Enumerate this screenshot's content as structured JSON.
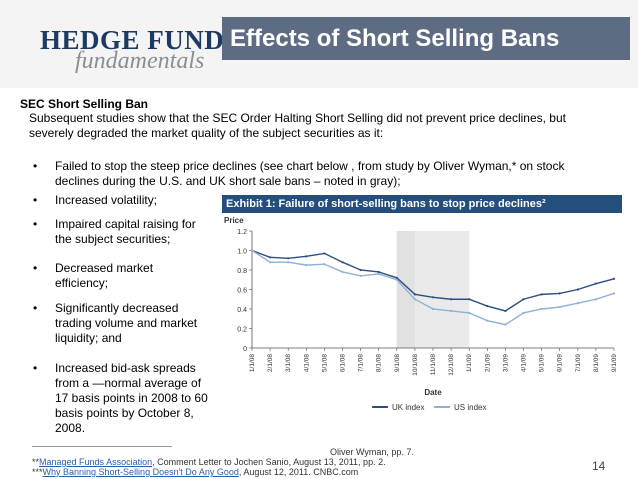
{
  "header": {
    "logo_line1": "HEDGE FUND",
    "logo_line2": "fundamentals",
    "title": "Effects of Short Selling Bans"
  },
  "section": {
    "heading": "SEC Short Selling Ban",
    "intro_line1": "Subsequent studies show that the SEC Order Halting Short Selling did not prevent price declines, but",
    "intro_line2": "severely degraded the market quality of the subject securities as it:"
  },
  "bullets": {
    "b1_line1": "Failed to stop the steep price declines (see chart below , from study by Oliver Wyman,* on stock",
    "b1_line2": "declines during the U.S. and UK short sale bans – noted in gray);",
    "b2": "Increased volatility;",
    "b3_line1": "Impaired capital raising for",
    "b3_line2": "the subject securities;",
    "b4_line1": "Decreased market",
    "b4_line2": "efficiency;",
    "b5_line1": "Significantly decreased",
    "b5_line2": "trading volume and market",
    "b5_line3": "liquidity; and",
    "b6_line1": "Increased bid-ask spreads",
    "b6_line2": "from a —normal average of",
    "b6_line3": "17 basis points in 2008 to 60",
    "b6_line4": "basis points by October 8,",
    "b6_line5": "2008."
  },
  "footnotes": {
    "f1_tail": "Oliver Wyman, pp. 7.",
    "f2_prefix": "**",
    "f2_link": "Managed Funds Association",
    "f2_rest": ", Comment Letter to Jochen Sanio, August 13, 2011, pp. 2.",
    "f3_prefix": "***",
    "f3_link": "Why Banning Short-Selling Doesn't Do Any Good",
    "f3_rest": ", August 12, 2011. CNBC.com"
  },
  "page_number": "14",
  "chart_data": {
    "type": "line",
    "title": "Exhibit 1: Failure of short-selling bans to stop price declines²",
    "ylabel": "Price",
    "xlabel": "Date",
    "ylim": [
      0,
      1.2
    ],
    "yticks": [
      "0",
      "0.2",
      "0.4",
      "0.6",
      "0.8",
      "1.0",
      "1.2"
    ],
    "categories": [
      "1/1/08",
      "2/1/08",
      "3/1/08",
      "4/1/08",
      "5/1/08",
      "6/1/08",
      "7/1/08",
      "8/1/08",
      "9/1/08",
      "10/1/08",
      "11/1/08",
      "12/1/08",
      "1/1/09",
      "2/1/09",
      "3/1/09",
      "4/1/09",
      "5/1/09",
      "6/1/09",
      "7/1/09",
      "8/1/09",
      "9/1/09"
    ],
    "series": [
      {
        "name": "UK index",
        "color": "#2b4f7e",
        "values": [
          1.0,
          0.93,
          0.92,
          0.94,
          0.97,
          0.88,
          0.8,
          0.78,
          0.72,
          0.55,
          0.52,
          0.5,
          0.5,
          0.43,
          0.38,
          0.5,
          0.55,
          0.56,
          0.6,
          0.66,
          0.71
        ]
      },
      {
        "name": "US index",
        "color": "#8fb0d8",
        "values": [
          1.0,
          0.88,
          0.88,
          0.85,
          0.86,
          0.78,
          0.74,
          0.76,
          0.7,
          0.5,
          0.4,
          0.38,
          0.36,
          0.28,
          0.24,
          0.36,
          0.4,
          0.42,
          0.46,
          0.5,
          0.56
        ]
      }
    ],
    "shaded_periods": [
      {
        "start": "9/1/08",
        "end": "1/1/09"
      },
      {
        "start": "9/1/08",
        "end": "10/1/08"
      }
    ],
    "legend": "bottom",
    "grid": false
  }
}
